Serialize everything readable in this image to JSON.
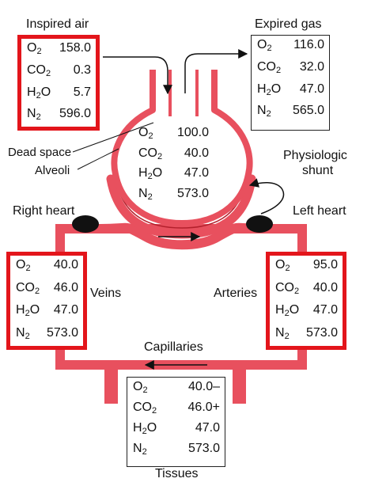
{
  "colors": {
    "vessel": "#e8505e",
    "vessel_edge": "#b3202c",
    "highlight": "#e3151b",
    "valve": "#111111"
  },
  "labels": {
    "inspired_air": "Inspired air",
    "expired_gas": "Expired gas",
    "dead_space": "Dead space",
    "alveoli": "Alveoli",
    "physiologic": "Physiologic",
    "shunt": "shunt",
    "right_heart": "Right heart",
    "left_heart": "Left heart",
    "veins": "Veins",
    "arteries": "Arteries",
    "capillaries": "Capillaries",
    "tissues": "Tissues"
  },
  "gas_names": [
    "O",
    "CO",
    "H",
    "O",
    "N"
  ],
  "gas_subscripts": [
    "2",
    "2",
    "2",
    "2"
  ],
  "inspired": {
    "o2": "158.0",
    "co2": "0.3",
    "h2o": "5.7",
    "n2": "596.0"
  },
  "expired": {
    "o2": "116.0",
    "co2": "32.0",
    "h2o": "47.0",
    "n2": "565.0"
  },
  "alveolar": {
    "o2": "100.0",
    "co2": "40.0",
    "h2o": "47.0",
    "n2": "573.0"
  },
  "venous": {
    "o2": "40.0",
    "co2": "46.0",
    "h2o": "47.0",
    "n2": "573.0"
  },
  "arterial": {
    "o2": "95.0",
    "co2": "40.0",
    "h2o": "47.0",
    "n2": "573.0"
  },
  "tissue": {
    "o2": "40.0–",
    "co2": "46.0+",
    "h2o": "47.0",
    "n2": "573.0"
  }
}
